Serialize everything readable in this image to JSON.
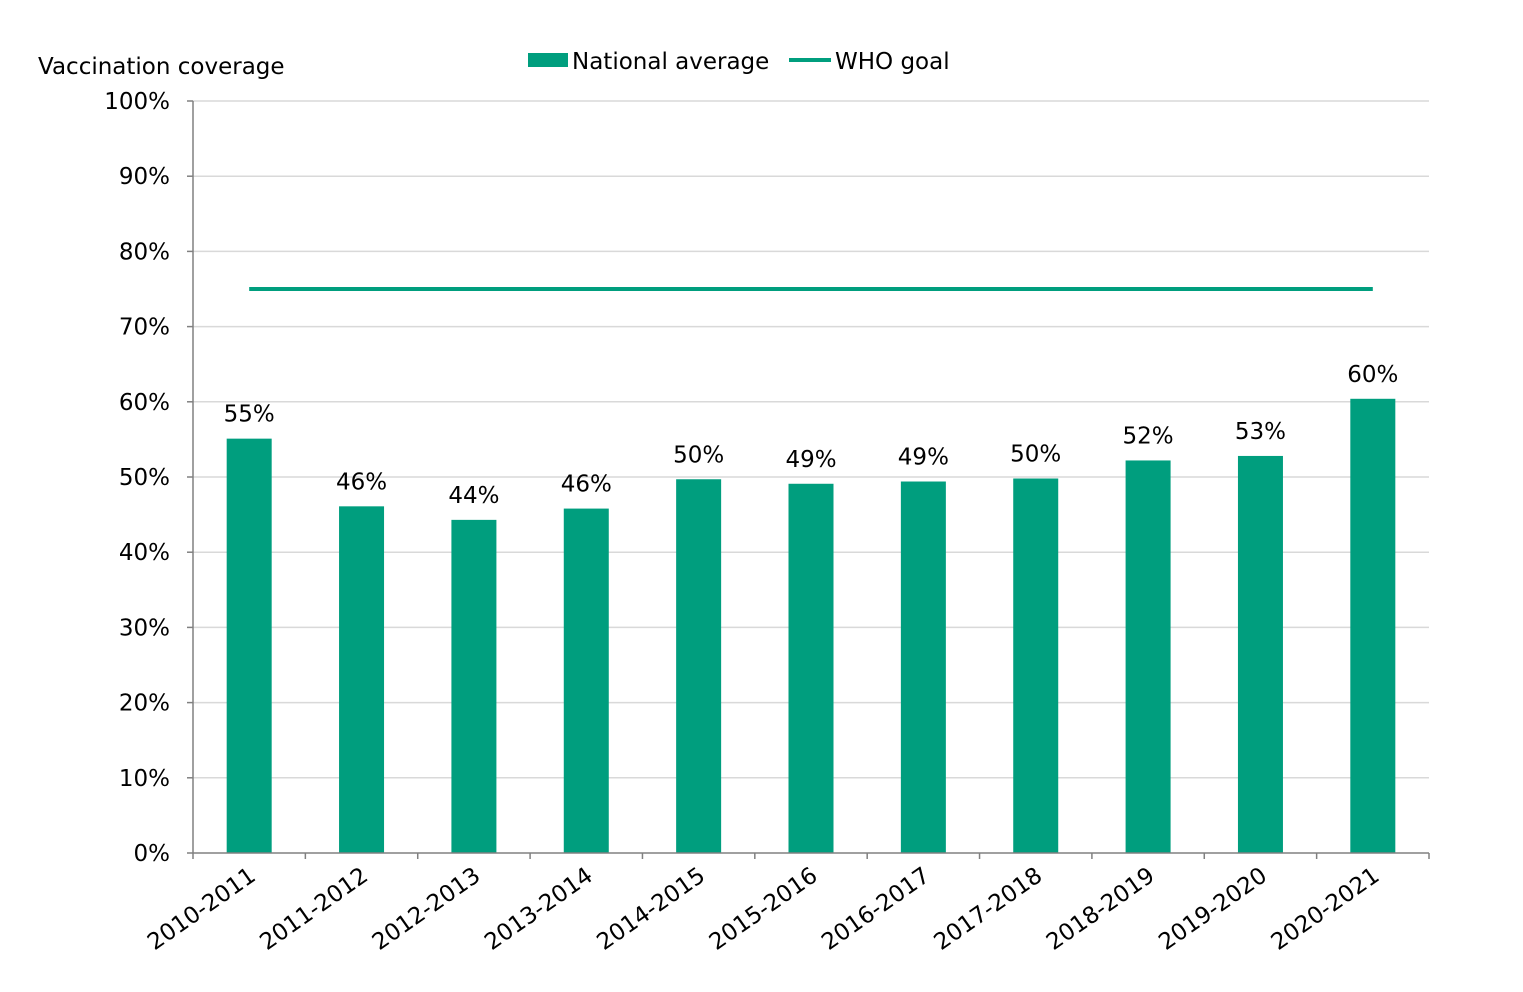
{
  "chart_data": {
    "type": "bar",
    "ylabel": "Vaccination coverage",
    "ylim": [
      0,
      100
    ],
    "yticks": [
      "0%",
      "10%",
      "20%",
      "30%",
      "40%",
      "50%",
      "60%",
      "70%",
      "80%",
      "90%",
      "100%"
    ],
    "categories": [
      "2010-2011",
      "2011-2012",
      "2012-2013",
      "2013-2014",
      "2014-2015",
      "2015-2016",
      "2016-2017",
      "2017-2018",
      "2018-2019",
      "2019-2020",
      "2020-2021"
    ],
    "series": [
      {
        "name": "National average",
        "type": "bar",
        "values": [
          55.1,
          46.1,
          44.3,
          45.8,
          49.7,
          49.1,
          49.4,
          49.8,
          52.2,
          52.8,
          60.4
        ],
        "labels": [
          "55%",
          "46%",
          "44%",
          "46%",
          "50%",
          "49%",
          "49%",
          "50%",
          "52%",
          "53%",
          "60%"
        ]
      },
      {
        "name": "WHO goal",
        "type": "line",
        "values": [
          75,
          75,
          75,
          75,
          75,
          75,
          75,
          75,
          75,
          75,
          75
        ]
      }
    ],
    "legend": {
      "position": "top-center",
      "entries": [
        "National average",
        "WHO goal"
      ]
    },
    "grid": true,
    "colors": {
      "bar": "#009E7E",
      "line": "#009E7E",
      "grid": "#D9D9D9",
      "axis": "#808080"
    }
  }
}
